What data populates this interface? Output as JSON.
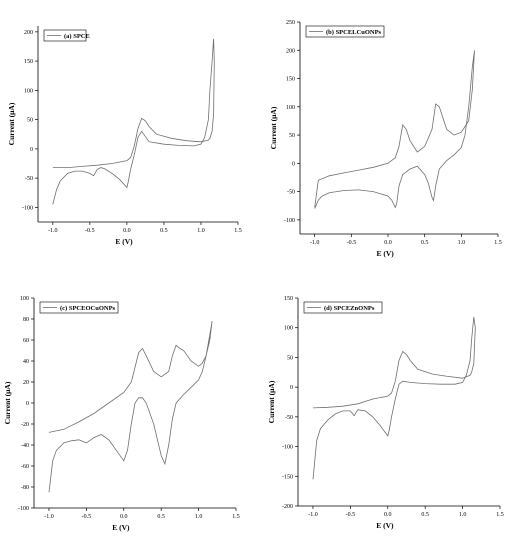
{
  "chart_data": [
    {
      "type": "line",
      "legend": "(a) SPCE",
      "xlabel": "E (V)",
      "ylabel": "Current (μA)",
      "xlim": [
        -1.2,
        1.5
      ],
      "ylim": [
        -125,
        210
      ],
      "xticks": [
        -1.0,
        -0.5,
        0.0,
        0.5,
        1.0,
        1.5
      ],
      "xticklabels": [
        "-1.0",
        "-0.5",
        "0.0",
        "0.5",
        "1.0",
        "1.5"
      ],
      "yticks": [
        -100,
        -50,
        0,
        50,
        100,
        150,
        200
      ],
      "yticklabels": [
        "-100",
        "-50",
        "0",
        "50",
        "100",
        "150",
        "200"
      ],
      "series": [
        {
          "x": [
            -1.0,
            -0.95,
            -0.9,
            -0.8,
            -0.7,
            -0.6,
            -0.5,
            -0.45,
            -0.4,
            -0.35,
            -0.3,
            -0.2,
            -0.1,
            0.0,
            0.02,
            0.05,
            0.1,
            0.15,
            0.2,
            0.3,
            0.5,
            0.7,
            0.9,
            1.0,
            1.05,
            1.1,
            1.12,
            1.15,
            1.17,
            1.18,
            1.17,
            1.15,
            1.12,
            1.1,
            1.0,
            0.8,
            0.6,
            0.4,
            0.3,
            0.25,
            0.2,
            0.15,
            0.1,
            0.05,
            0.0,
            -0.2,
            -0.4,
            -0.6,
            -0.8,
            -1.0
          ],
          "y": [
            -95,
            -70,
            -55,
            -42,
            -38,
            -38,
            -42,
            -46,
            -35,
            -32,
            -34,
            -42,
            -52,
            -66,
            -55,
            -35,
            -10,
            20,
            30,
            12,
            8,
            6,
            5,
            8,
            20,
            50,
            100,
            150,
            188,
            150,
            60,
            30,
            18,
            15,
            12,
            14,
            18,
            25,
            38,
            48,
            52,
            35,
            5,
            -15,
            -20,
            -25,
            -28,
            -30,
            -32,
            -32
          ]
        }
      ]
    },
    {
      "type": "line",
      "legend": "(b) SPCELCuONPs",
      "xlabel": "E (V)",
      "ylabel": "Current (μA)",
      "xlim": [
        -1.2,
        1.5
      ],
      "ylim": [
        -125,
        250
      ],
      "xticks": [
        -1.0,
        -0.5,
        0.0,
        0.5,
        1.0,
        1.5
      ],
      "xticklabels": [
        "-1.0",
        "-0.5",
        "0.0",
        "0.5",
        "1.0",
        "1.5"
      ],
      "yticks": [
        -100,
        -50,
        0,
        50,
        100,
        150,
        200,
        250
      ],
      "yticklabels": [
        "-100",
        "-50",
        "0",
        "50",
        "100",
        "150",
        "200",
        "250"
      ],
      "series": [
        {
          "x": [
            -1.0,
            -0.95,
            -0.9,
            -0.8,
            -0.6,
            -0.4,
            -0.2,
            0.0,
            0.05,
            0.1,
            0.12,
            0.15,
            0.2,
            0.3,
            0.4,
            0.5,
            0.55,
            0.6,
            0.62,
            0.65,
            0.7,
            0.8,
            0.9,
            1.0,
            1.05,
            1.1,
            1.15,
            1.18,
            1.15,
            1.1,
            1.0,
            0.9,
            0.8,
            0.75,
            0.7,
            0.65,
            0.6,
            0.5,
            0.4,
            0.3,
            0.25,
            0.2,
            0.15,
            0.1,
            0.0,
            -0.2,
            -0.4,
            -0.6,
            -0.8,
            -0.95,
            -1.0
          ],
          "y": [
            -80,
            -65,
            -58,
            -52,
            -48,
            -47,
            -50,
            -58,
            -65,
            -78,
            -70,
            -40,
            -20,
            -10,
            -5,
            -20,
            -35,
            -60,
            -66,
            -40,
            -10,
            5,
            15,
            28,
            50,
            100,
            170,
            200,
            130,
            75,
            55,
            50,
            60,
            80,
            100,
            105,
            60,
            30,
            20,
            40,
            60,
            68,
            30,
            10,
            0,
            -7,
            -12,
            -17,
            -22,
            -30,
            -78
          ]
        }
      ]
    },
    {
      "type": "line",
      "legend": "(c) SPCEOCuONPs",
      "xlabel": "E (V)",
      "ylabel": "Current (μA)",
      "xlim": [
        -1.2,
        1.5
      ],
      "ylim": [
        -100,
        100
      ],
      "xticks": [
        -1.0,
        -0.5,
        0.0,
        0.5,
        1.0,
        1.5
      ],
      "xticklabels": [
        "-1.0",
        "-0.5",
        "0.0",
        "0.5",
        "1.0",
        "1.5"
      ],
      "yticks": [
        -100,
        -80,
        -60,
        -40,
        -20,
        0,
        20,
        40,
        60,
        80,
        100
      ],
      "yticklabels": [
        "-100",
        "-80",
        "-60",
        "-40",
        "-20",
        "0",
        "20",
        "40",
        "60",
        "80",
        "100"
      ],
      "series": [
        {
          "x": [
            -1.0,
            -0.95,
            -0.9,
            -0.8,
            -0.7,
            -0.6,
            -0.5,
            -0.4,
            -0.3,
            -0.2,
            -0.1,
            0.0,
            0.05,
            0.1,
            0.15,
            0.2,
            0.25,
            0.3,
            0.4,
            0.5,
            0.55,
            0.6,
            0.65,
            0.7,
            0.8,
            0.9,
            1.0,
            1.05,
            1.1,
            1.15,
            1.18,
            1.15,
            1.1,
            1.05,
            1.0,
            0.9,
            0.8,
            0.75,
            0.7,
            0.65,
            0.6,
            0.5,
            0.4,
            0.3,
            0.25,
            0.2,
            0.1,
            0.0,
            -0.2,
            -0.4,
            -0.6,
            -0.8,
            -1.0
          ],
          "y": [
            -85,
            -55,
            -45,
            -38,
            -36,
            -35,
            -38,
            -33,
            -30,
            -35,
            -45,
            -55,
            -45,
            -20,
            0,
            5,
            5,
            0,
            -20,
            -50,
            -58,
            -40,
            -15,
            0,
            8,
            15,
            22,
            30,
            45,
            65,
            78,
            60,
            45,
            38,
            35,
            40,
            50,
            52,
            55,
            45,
            30,
            25,
            30,
            45,
            52,
            48,
            20,
            10,
            0,
            -10,
            -18,
            -25,
            -28
          ]
        }
      ]
    },
    {
      "type": "line",
      "legend": "(d) SPCEZnONPs",
      "xlabel": "E (V)",
      "ylabel": "Current (μA)",
      "xlim": [
        -1.2,
        1.5
      ],
      "ylim": [
        -200,
        150
      ],
      "xticks": [
        -1.0,
        -0.5,
        0.0,
        0.5,
        1.0,
        1.5
      ],
      "xticklabels": [
        "-1.0",
        "-0.5",
        "0.0",
        "0.5",
        "1.0",
        "1.5"
      ],
      "yticks": [
        -200,
        -150,
        -100,
        -50,
        0,
        50,
        100,
        150
      ],
      "yticklabels": [
        "-200",
        "-150",
        "-100",
        "-50",
        "0",
        "50",
        "100",
        "150"
      ],
      "series": [
        {
          "x": [
            -1.0,
            -0.95,
            -0.9,
            -0.8,
            -0.7,
            -0.6,
            -0.5,
            -0.45,
            -0.4,
            -0.3,
            -0.2,
            -0.1,
            0.0,
            0.02,
            0.05,
            0.1,
            0.15,
            0.2,
            0.3,
            0.5,
            0.7,
            0.9,
            1.0,
            1.05,
            1.1,
            1.12,
            1.15,
            1.17,
            1.15,
            1.12,
            1.1,
            1.0,
            0.8,
            0.6,
            0.4,
            0.3,
            0.25,
            0.2,
            0.15,
            0.1,
            0.05,
            0.0,
            -0.2,
            -0.4,
            -0.6,
            -0.8,
            -1.0
          ],
          "y": [
            -155,
            -90,
            -70,
            -55,
            -45,
            -40,
            -40,
            -48,
            -38,
            -40,
            -50,
            -65,
            -82,
            -72,
            -50,
            -20,
            5,
            10,
            8,
            6,
            5,
            5,
            8,
            20,
            45,
            80,
            118,
            100,
            40,
            25,
            20,
            15,
            18,
            22,
            30,
            45,
            55,
            60,
            45,
            10,
            -10,
            -15,
            -20,
            -28,
            -32,
            -34,
            -35
          ]
        }
      ]
    }
  ]
}
